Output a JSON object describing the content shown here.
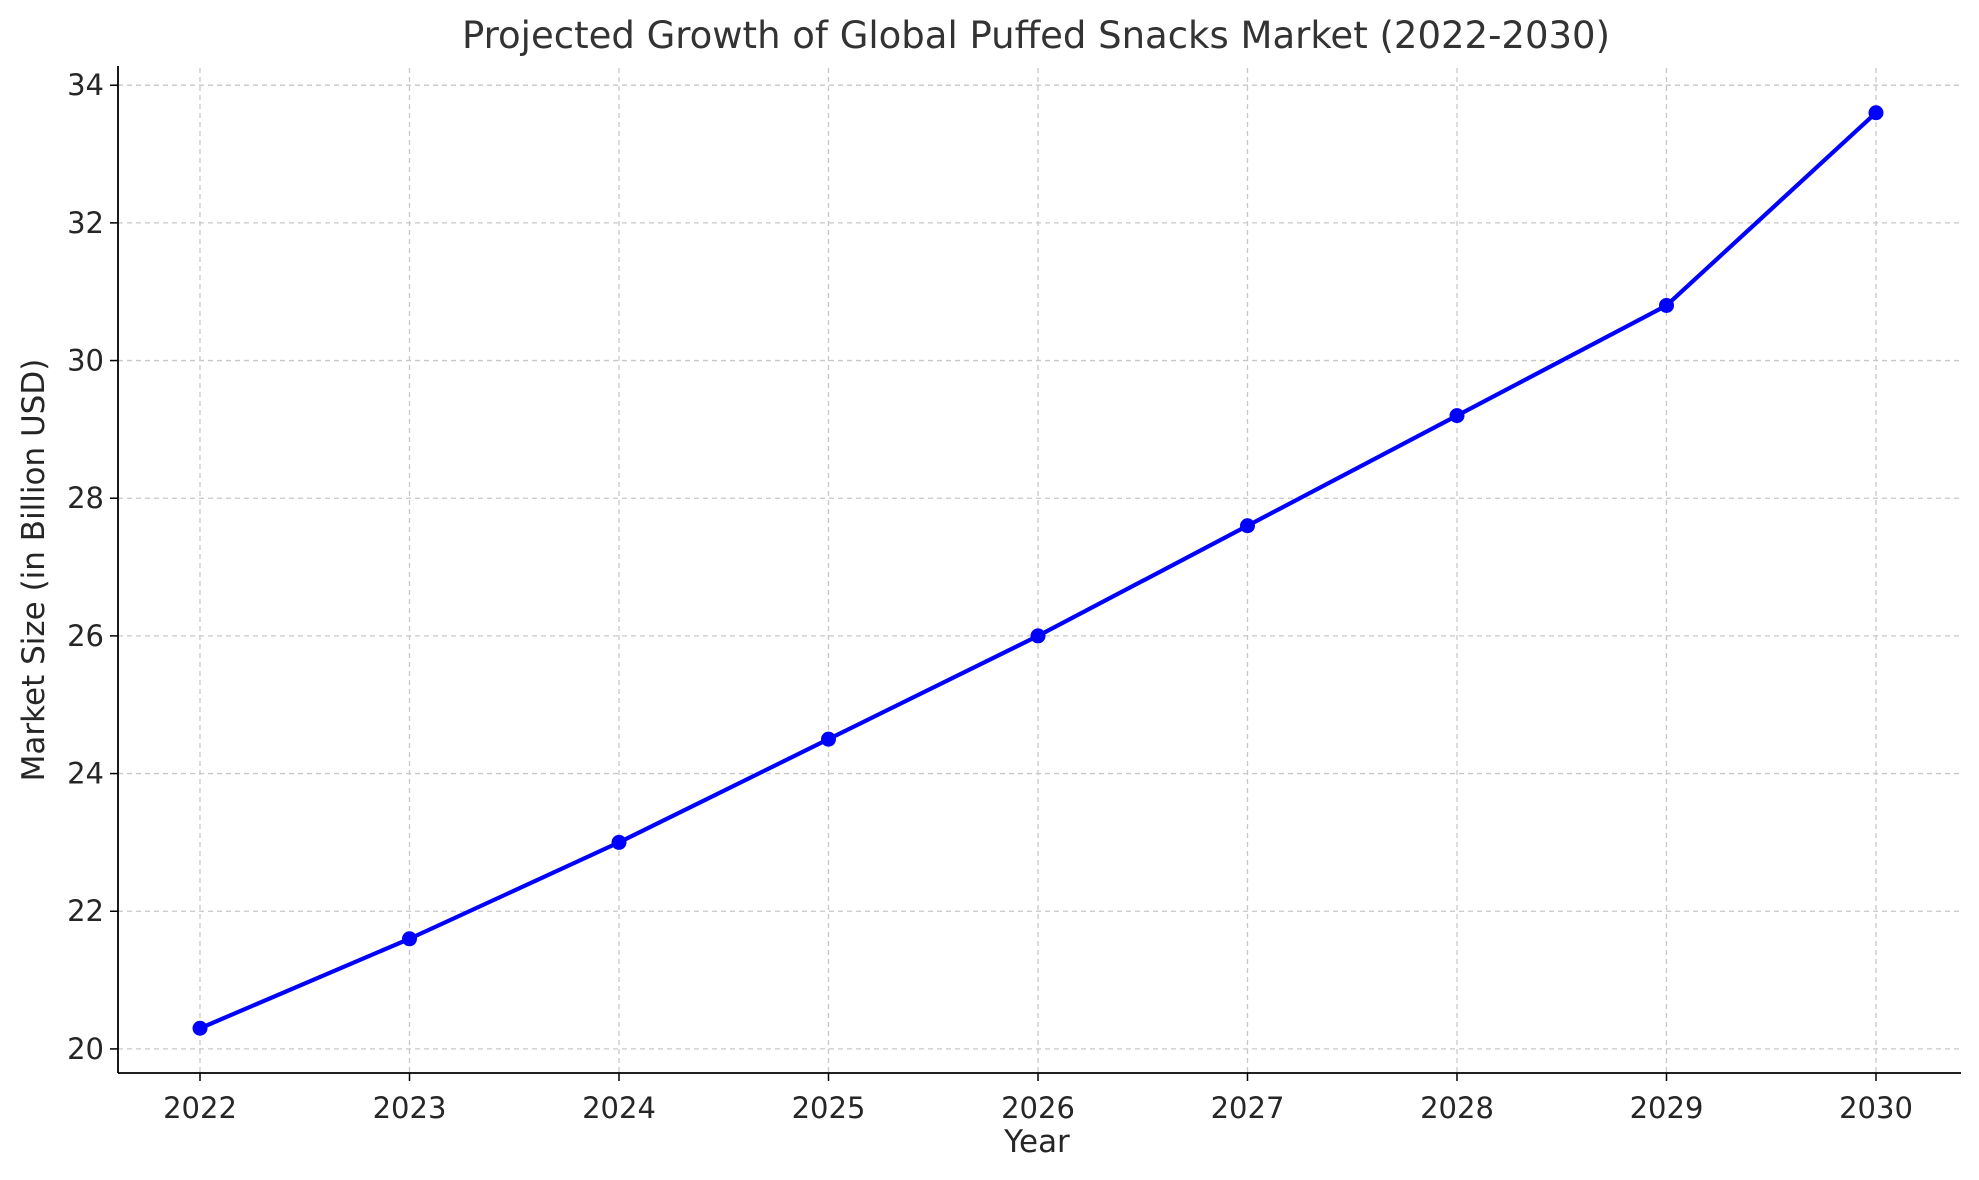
{
  "chart_data": {
    "type": "line",
    "title": "Projected Growth of Global Puffed Snacks Market (2022-2030)",
    "xlabel": "Year",
    "ylabel": "Market Size (in Billion USD)",
    "x": [
      "2022",
      "2023",
      "2024",
      "2025",
      "2026",
      "2027",
      "2028",
      "2029",
      "2030"
    ],
    "series": [
      {
        "values": [
          20.3,
          21.6,
          23.0,
          24.5,
          26.0,
          27.6,
          29.2,
          30.8,
          33.6
        ],
        "color": "#0000ff",
        "marker": "circle"
      }
    ],
    "y_ticks": [
      "20",
      "22",
      "24",
      "26",
      "28",
      "30",
      "32",
      "34"
    ],
    "ylim": [
      19.65,
      34.25
    ],
    "grid": true,
    "grid_style": "dashed",
    "legend": "none",
    "colors": {
      "line": "#0000ff",
      "grid": "#c8c8c8",
      "axis": "#000000",
      "text": "#262626"
    }
  }
}
